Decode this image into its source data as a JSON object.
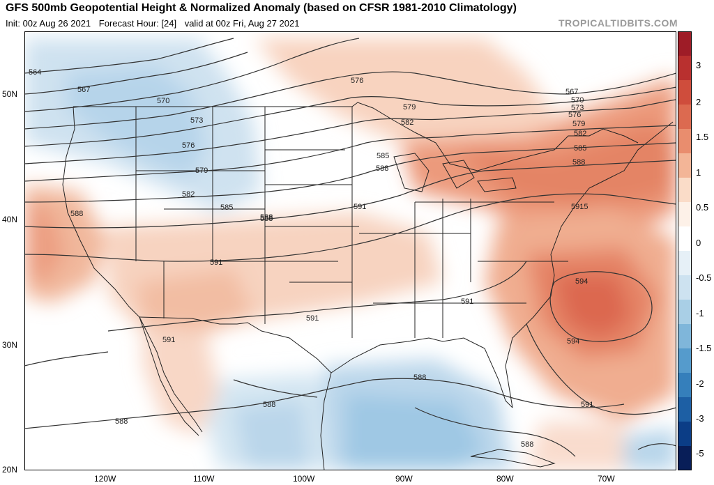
{
  "header": {
    "title": "GFS 500mb Geopotential Height & Normalized Anomaly (based on CFSR 1981-2010 Climatology)",
    "init": "Init: 00z Aug 26 2021",
    "forecast_hour": "Forecast Hour: [24]",
    "valid": "valid at 00z Fri, Aug 27 2021",
    "brand": "TROPICALTIDBITS.COM"
  },
  "axes": {
    "lat_labels": [
      "50N",
      "40N",
      "30N",
      "20N"
    ],
    "lon_labels": [
      "120W",
      "110W",
      "100W",
      "90W",
      "80W",
      "70W"
    ]
  },
  "colorbar": {
    "labels": [
      "3",
      "2",
      "1.5",
      "1",
      "0.5",
      "0",
      "-0.5",
      "-1",
      "-1.5",
      "-2",
      "-3",
      "-5"
    ],
    "colors": [
      "#9e1c27",
      "#b9302f",
      "#cf4d3c",
      "#dc6a50",
      "#e98d6e",
      "#f3b597",
      "#fadcc8",
      "#fdf1e8",
      "#ffffff",
      "#e6f0f7",
      "#cde2f0",
      "#a9cfe6",
      "#7fb6da",
      "#559bcc",
      "#357fbb",
      "#1d5fa4",
      "#0b3d86",
      "#081e58"
    ]
  },
  "contours": {
    "labels": [
      "564",
      "567",
      "570",
      "573",
      "576",
      "579",
      "582",
      "585",
      "588",
      "591",
      "576",
      "579",
      "582",
      "585",
      "588",
      "591",
      "567",
      "570",
      "573",
      "576",
      "579",
      "582",
      "585",
      "588",
      "5915",
      "594",
      "594",
      "591",
      "588",
      "591",
      "588",
      "591",
      "588",
      "588",
      "591",
      "588",
      "588"
    ]
  },
  "colors": {
    "warm_light": "#f6cdb6",
    "warm_mid": "#eda083",
    "warm_strong": "#dd7158",
    "cool_light": "#d9e8f3",
    "cool_mid": "#b9d6ea",
    "cool_strong": "#8ebfe0",
    "contour_line": "#333333",
    "state_line": "#222222"
  }
}
